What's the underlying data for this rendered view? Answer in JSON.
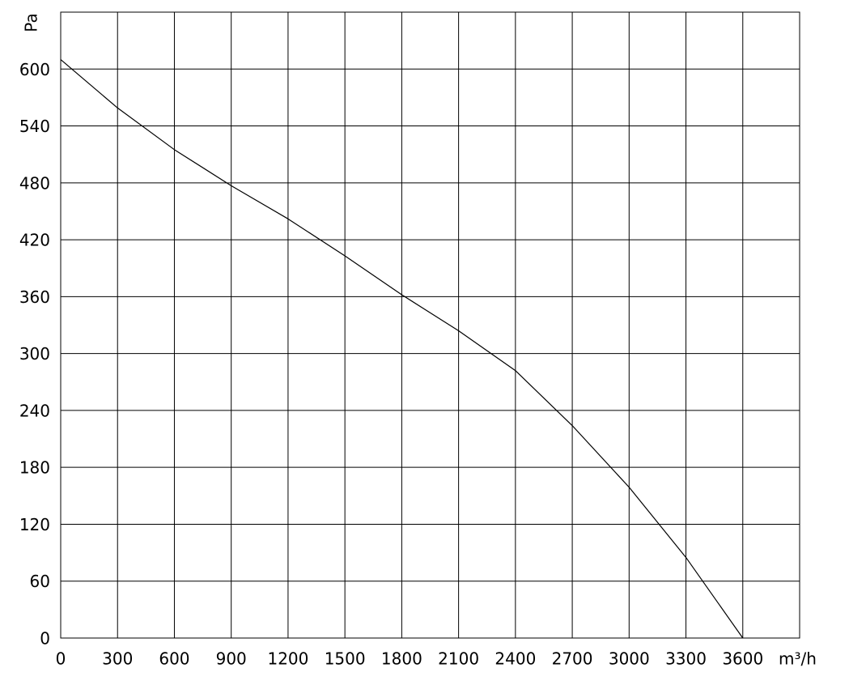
{
  "chart_data": {
    "type": "line",
    "y_label": "Pa",
    "x_label": "m³/h",
    "x": [
      0,
      300,
      600,
      900,
      1200,
      1500,
      1800,
      2100,
      2400,
      2700,
      3000,
      3300,
      3600
    ],
    "series": [
      {
        "color": "#000000",
        "values": [
          610,
          559,
          515,
          477,
          442,
          403,
          362,
          324,
          282,
          224,
          159,
          85,
          0
        ]
      }
    ],
    "xlim": [
      0,
      3900
    ],
    "xticks": [
      0,
      300,
      600,
      900,
      1200,
      1500,
      1800,
      2100,
      2400,
      2700,
      3000,
      3300,
      3600
    ],
    "ylim": [
      0,
      660
    ],
    "yticks": [
      0,
      60,
      120,
      180,
      240,
      300,
      360,
      420,
      480,
      540,
      600
    ],
    "grid": true
  }
}
